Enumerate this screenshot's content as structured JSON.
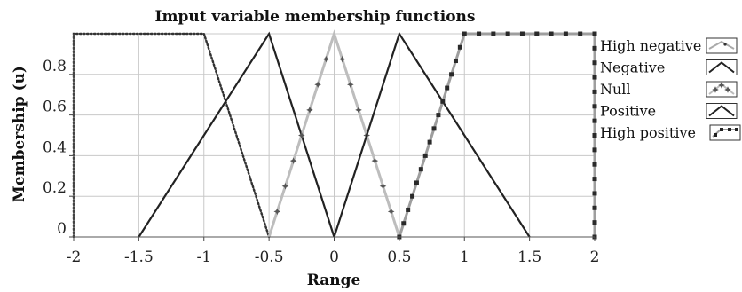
{
  "chart_data": {
    "type": "line",
    "title": "Imput variable membership functions",
    "xlabel": "Range",
    "ylabel": "Membership (u)",
    "xlim": [
      -2,
      2
    ],
    "ylim": [
      0,
      1
    ],
    "x_ticks": [
      "-2",
      "-1.5",
      "-1",
      "-0.5",
      "0",
      "0.5",
      "1",
      "1.5",
      "2"
    ],
    "x_tick_values": [
      -2,
      -1.5,
      -1,
      -0.5,
      0,
      0.5,
      1,
      1.5,
      2
    ],
    "y_ticks": [
      "0",
      "0.2",
      "0.4",
      "0.6",
      "0.8"
    ],
    "y_tick_values": [
      0,
      0.2,
      0.4,
      0.6,
      0.8
    ],
    "grid": true,
    "legend_position": "right",
    "series": [
      {
        "name": "High negative",
        "color": "#333333",
        "style": "dotted",
        "x": [
          -2,
          -2,
          -1,
          -0.5
        ],
        "y": [
          0,
          1,
          1,
          0
        ]
      },
      {
        "name": "Negative",
        "color": "#222222",
        "style": "solid",
        "x": [
          -1.5,
          -0.5,
          0
        ],
        "y": [
          0,
          1,
          0
        ]
      },
      {
        "name": "Null",
        "color": "#bdbdbd",
        "style": "star-markers",
        "x": [
          -0.5,
          0,
          0.5
        ],
        "y": [
          0,
          1,
          0
        ]
      },
      {
        "name": "Positive",
        "color": "#222222",
        "style": "solid",
        "x": [
          0,
          0.5,
          1.5
        ],
        "y": [
          0,
          1,
          0
        ]
      },
      {
        "name": "High positive",
        "color": "#9e9e9e",
        "style": "square-markers",
        "x": [
          0.5,
          1,
          2,
          2
        ],
        "y": [
          0,
          1,
          1,
          0
        ]
      }
    ]
  }
}
